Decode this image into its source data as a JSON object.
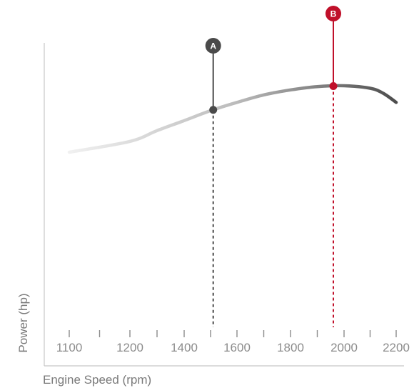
{
  "chart_data": {
    "type": "line",
    "title": "",
    "xlabel": "Engine Speed (rpm)",
    "ylabel": "Power (hp)",
    "xlim": [
      1100,
      2200
    ],
    "x_ticks": [
      1100,
      1200,
      1400,
      1600,
      1800,
      2000,
      2200
    ],
    "x_tick_labels": [
      "1100",
      "1200",
      "1400",
      "1600",
      "1800",
      "2000",
      "2200"
    ],
    "y_ticks_shown": false,
    "grid": false,
    "series": [
      {
        "x": [
          1100,
          1200,
          1300,
          1400,
          1500,
          1600,
          1700,
          1800,
          1900,
          2000,
          2100,
          2150,
          2200
        ],
        "y": [
          0.0,
          0.13,
          0.26,
          0.38,
          0.5,
          0.6,
          0.69,
          0.75,
          0.79,
          0.8,
          0.77,
          0.71,
          0.6
        ],
        "style": "gradient light-grey to dark-grey"
      }
    ],
    "markers": [
      {
        "label": "A",
        "x": 1510,
        "color": "#4a4a4a"
      },
      {
        "label": "B",
        "x": 1960,
        "color": "#c0102a"
      }
    ]
  }
}
